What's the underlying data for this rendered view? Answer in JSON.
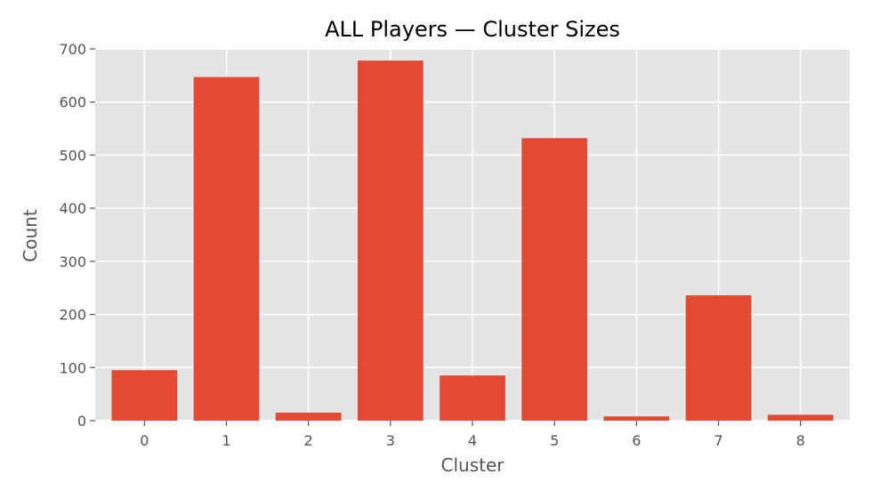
{
  "chart_data": {
    "type": "bar",
    "title": "ALL Players — Cluster Sizes",
    "xlabel": "Cluster",
    "ylabel": "Count",
    "categories": [
      "0",
      "1",
      "2",
      "3",
      "4",
      "5",
      "6",
      "7",
      "8"
    ],
    "values": [
      95,
      647,
      15,
      678,
      85,
      532,
      8,
      236,
      11
    ],
    "ylim": [
      0,
      700
    ],
    "yticks": [
      0,
      100,
      200,
      300,
      400,
      500,
      600,
      700
    ],
    "grid": true,
    "bar_color": "#E24A33",
    "plot_background": "#E5E5E5",
    "grid_color": "#FFFFFF"
  }
}
